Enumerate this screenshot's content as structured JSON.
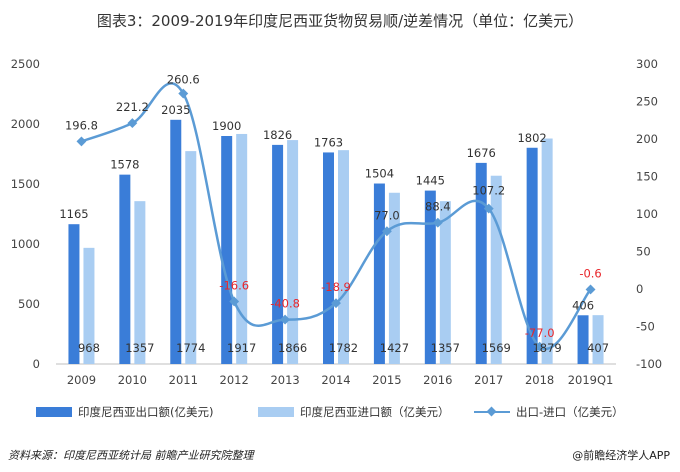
{
  "title": "图表3：2009-2019年印度尼西亚货物贸易顺/逆差情况（单位：亿美元）",
  "source": "资料来源：印度尼西亚统计局 前瞻产业研究院整理",
  "brand": "@前瞻经济学人APP",
  "chart_data": {
    "type": "bar",
    "categories": [
      "2009",
      "2010",
      "2011",
      "2012",
      "2013",
      "2014",
      "2015",
      "2016",
      "2017",
      "2018",
      "2019Q1"
    ],
    "series": [
      {
        "name": "印度尼西亚出口额(亿美元)",
        "kind": "bar",
        "axis": "left",
        "values": [
          1165,
          1578,
          2035,
          1900,
          1826,
          1763,
          1504,
          1445,
          1676,
          1802,
          406
        ],
        "labels": [
          "1165",
          "1578",
          "2035",
          "1900",
          "1826",
          "1763",
          "1504",
          "1445",
          "1676",
          "1802",
          "406"
        ],
        "color": "#3a7dd8"
      },
      {
        "name": "印度尼西亚进口额（亿美元）",
        "kind": "bar",
        "axis": "left",
        "values": [
          968,
          1357,
          1774,
          1917,
          1866,
          1782,
          1427,
          1357,
          1569,
          1879,
          407
        ],
        "labels": [
          "968",
          "1357",
          "1774",
          "1917",
          "1866",
          "1782",
          "1427",
          "1357",
          "1569",
          "1879",
          "407"
        ],
        "color": "#a9cdf2"
      },
      {
        "name": "出口-进口（亿美元）",
        "kind": "line",
        "axis": "right",
        "values": [
          196.8,
          221.2,
          260.6,
          -16.6,
          -40.8,
          -18.9,
          77.0,
          88.4,
          107.2,
          -77.0,
          -0.6
        ],
        "labels": [
          "196.8",
          "221.2",
          "260.6",
          "-16.6",
          "-40.8",
          "-18.9",
          "77.0",
          "88.4",
          "107.2",
          "-77.0",
          "-0.6"
        ],
        "color": "#5b9bd5",
        "negative_label_color": "#e8262b"
      }
    ],
    "y_left": {
      "min": 0,
      "max": 2500,
      "ticks": [
        "0",
        "500",
        "1000",
        "1500",
        "2000",
        "2500"
      ]
    },
    "y_right": {
      "min": -100,
      "max": 300,
      "ticks": [
        "-100",
        "-50",
        "0",
        "50",
        "100",
        "150",
        "200",
        "250",
        "300"
      ]
    },
    "grid": false,
    "legend_position": "bottom"
  }
}
